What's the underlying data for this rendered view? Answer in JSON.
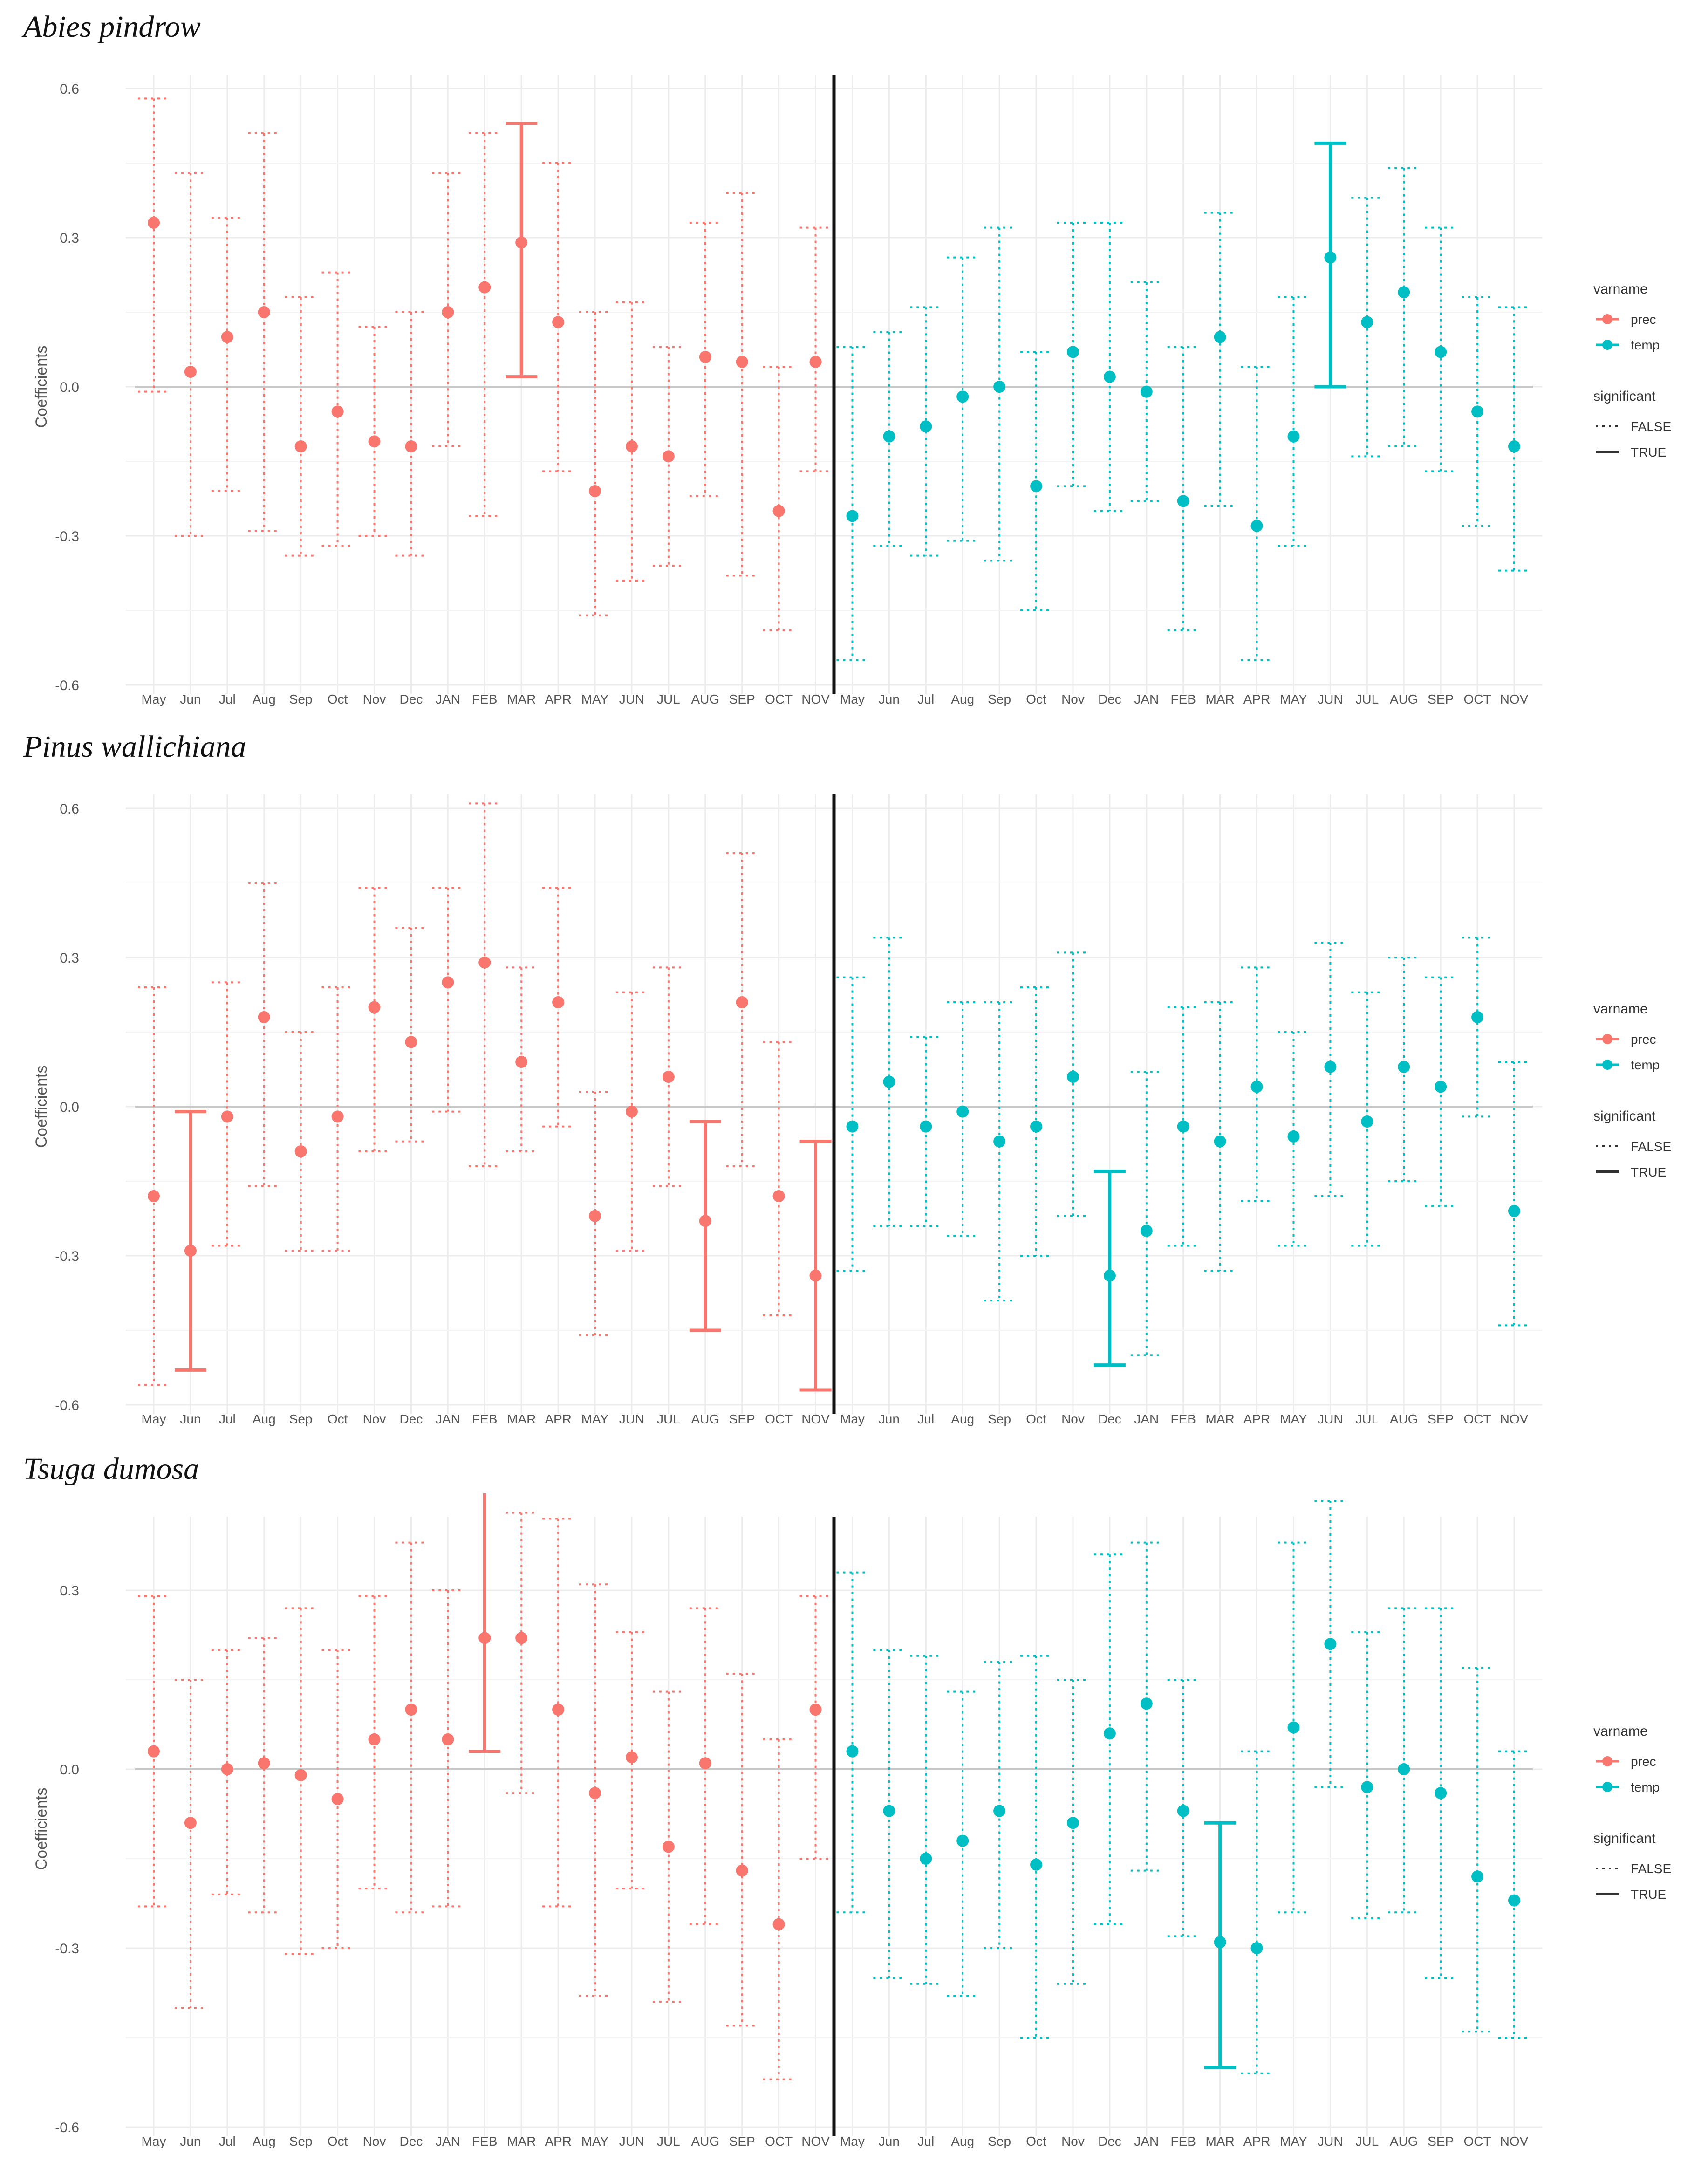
{
  "chart_data": [
    {
      "type": "errorbar",
      "title": "Abies pindrow",
      "ylabel": "Coefficients",
      "ylim": [
        -0.6,
        0.6
      ],
      "yticks": [
        0.6,
        0.3,
        0.0,
        -0.3,
        -0.6
      ],
      "ytick_labels": [
        "0.6",
        "0.3",
        "0.0",
        "-0.3",
        "-0.6"
      ],
      "categories": [
        "May",
        "Jun",
        "Jul",
        "Aug",
        "Sep",
        "Oct",
        "Nov",
        "Dec",
        "JAN",
        "FEB",
        "MAR",
        "APR",
        "MAY",
        "JUN",
        "JUL",
        "AUG",
        "SEP",
        "OCT",
        "NOV"
      ],
      "divider": "between series",
      "series": [
        {
          "name": "prec",
          "color": "#F8766D",
          "values": [
            0.33,
            0.03,
            0.1,
            0.15,
            -0.12,
            -0.05,
            -0.11,
            -0.12,
            0.15,
            0.2,
            0.29,
            0.13,
            -0.21,
            -0.12,
            -0.14,
            0.06,
            0.05,
            -0.25,
            0.05
          ],
          "lower": [
            -0.01,
            -0.3,
            -0.21,
            -0.29,
            -0.34,
            -0.32,
            -0.3,
            -0.34,
            -0.12,
            -0.26,
            0.02,
            -0.17,
            -0.46,
            -0.39,
            -0.36,
            -0.22,
            -0.38,
            -0.49,
            -0.17
          ],
          "upper": [
            0.58,
            0.43,
            0.34,
            0.51,
            0.18,
            0.23,
            0.12,
            0.15,
            0.43,
            0.51,
            0.53,
            0.45,
            0.15,
            0.17,
            0.08,
            0.33,
            0.39,
            0.04,
            0.32
          ],
          "significant": [
            false,
            false,
            false,
            false,
            false,
            false,
            false,
            false,
            false,
            false,
            true,
            false,
            false,
            false,
            false,
            false,
            false,
            false,
            false
          ]
        },
        {
          "name": "temp",
          "color": "#00BFC4",
          "values": [
            -0.26,
            -0.1,
            -0.08,
            -0.02,
            0.0,
            -0.2,
            0.07,
            0.02,
            -0.01,
            -0.23,
            0.1,
            -0.28,
            -0.1,
            0.26,
            0.13,
            0.19,
            0.07,
            -0.05,
            -0.12
          ],
          "lower": [
            -0.55,
            -0.32,
            -0.34,
            -0.31,
            -0.35,
            -0.45,
            -0.2,
            -0.25,
            -0.23,
            -0.49,
            -0.24,
            -0.55,
            -0.32,
            0.0,
            -0.14,
            -0.12,
            -0.17,
            -0.28,
            -0.37
          ],
          "upper": [
            0.08,
            0.11,
            0.16,
            0.26,
            0.32,
            0.07,
            0.33,
            0.33,
            0.21,
            0.08,
            0.35,
            0.04,
            0.18,
            0.49,
            0.38,
            0.44,
            0.32,
            0.18,
            0.16
          ],
          "significant": [
            false,
            false,
            false,
            false,
            false,
            false,
            false,
            false,
            false,
            false,
            false,
            false,
            false,
            true,
            false,
            false,
            false,
            false,
            false
          ]
        }
      ],
      "legend": {
        "position": "right",
        "title_color": "varname",
        "entries_color": [
          "prec",
          "temp"
        ],
        "title_linetype": "significant",
        "entries_linetype": [
          "FALSE",
          "TRUE"
        ]
      },
      "grid": true
    },
    {
      "type": "errorbar",
      "title": "Pinus wallichiana",
      "ylabel": "Coefficients",
      "ylim": [
        -0.6,
        0.6
      ],
      "yticks": [
        0.6,
        0.3,
        0.0,
        -0.3,
        -0.6
      ],
      "ytick_labels": [
        "0.6",
        "0.3",
        "0.0",
        "-0.3",
        "-0.6"
      ],
      "categories": [
        "May",
        "Jun",
        "Jul",
        "Aug",
        "Sep",
        "Oct",
        "Nov",
        "Dec",
        "JAN",
        "FEB",
        "MAR",
        "APR",
        "MAY",
        "JUN",
        "JUL",
        "AUG",
        "SEP",
        "OCT",
        "NOV"
      ],
      "divider": "between series",
      "series": [
        {
          "name": "prec",
          "color": "#F8766D",
          "values": [
            -0.18,
            -0.29,
            -0.02,
            0.18,
            -0.09,
            -0.02,
            0.2,
            0.13,
            0.25,
            0.29,
            0.09,
            0.21,
            -0.22,
            -0.01,
            0.06,
            -0.23,
            0.21,
            -0.18,
            -0.34
          ],
          "lower": [
            -0.56,
            -0.53,
            -0.28,
            -0.16,
            -0.29,
            -0.29,
            -0.09,
            -0.07,
            -0.01,
            -0.12,
            -0.09,
            -0.04,
            -0.46,
            -0.29,
            -0.16,
            -0.45,
            -0.12,
            -0.42,
            -0.57
          ],
          "upper": [
            0.24,
            -0.01,
            0.25,
            0.45,
            0.15,
            0.24,
            0.44,
            0.36,
            0.44,
            0.61,
            0.28,
            0.44,
            0.03,
            0.23,
            0.28,
            -0.03,
            0.51,
            0.13,
            -0.07
          ],
          "significant": [
            false,
            true,
            false,
            false,
            false,
            false,
            false,
            false,
            false,
            false,
            false,
            false,
            false,
            false,
            false,
            true,
            false,
            false,
            true
          ]
        },
        {
          "name": "temp",
          "color": "#00BFC4",
          "values": [
            -0.04,
            0.05,
            -0.04,
            -0.01,
            -0.07,
            -0.04,
            0.06,
            -0.34,
            -0.25,
            -0.04,
            -0.07,
            0.04,
            -0.06,
            0.08,
            -0.03,
            0.08,
            0.04,
            0.18,
            -0.21
          ],
          "lower": [
            -0.33,
            -0.24,
            -0.24,
            -0.26,
            -0.39,
            -0.3,
            -0.22,
            -0.52,
            -0.5,
            -0.28,
            -0.33,
            -0.19,
            -0.28,
            -0.18,
            -0.28,
            -0.15,
            -0.2,
            -0.02,
            -0.44
          ],
          "upper": [
            0.26,
            0.34,
            0.14,
            0.21,
            0.21,
            0.24,
            0.31,
            -0.13,
            0.07,
            0.2,
            0.21,
            0.28,
            0.15,
            0.33,
            0.23,
            0.3,
            0.26,
            0.34,
            0.09
          ],
          "significant": [
            false,
            false,
            false,
            false,
            false,
            false,
            false,
            true,
            false,
            false,
            false,
            false,
            false,
            false,
            false,
            false,
            false,
            false,
            false
          ]
        }
      ],
      "legend": {
        "position": "right",
        "title_color": "varname",
        "entries_color": [
          "prec",
          "temp"
        ],
        "title_linetype": "significant",
        "entries_linetype": [
          "FALSE",
          "TRUE"
        ]
      },
      "grid": true
    },
    {
      "type": "errorbar",
      "title": "Tsuga dumosa",
      "ylabel": "Coefficients",
      "ylim": [
        -0.6,
        0.4
      ],
      "yticks": [
        0.3,
        0.0,
        -0.3,
        -0.6
      ],
      "ytick_labels": [
        "0.3",
        "0.0",
        "-0.3",
        "-0.6"
      ],
      "categories": [
        "May",
        "Jun",
        "Jul",
        "Aug",
        "Sep",
        "Oct",
        "Nov",
        "Dec",
        "JAN",
        "FEB",
        "MAR",
        "APR",
        "MAY",
        "JUN",
        "JUL",
        "AUG",
        "SEP",
        "OCT",
        "NOV"
      ],
      "divider": "between series",
      "series": [
        {
          "name": "prec",
          "color": "#F8766D",
          "values": [
            0.03,
            -0.09,
            0.0,
            0.01,
            -0.01,
            -0.05,
            0.05,
            0.1,
            0.05,
            0.22,
            0.22,
            0.1,
            -0.04,
            0.02,
            -0.13,
            0.01,
            -0.17,
            -0.26,
            0.1
          ],
          "lower": [
            -0.23,
            -0.4,
            -0.21,
            -0.24,
            -0.31,
            -0.3,
            -0.2,
            -0.24,
            -0.23,
            0.03,
            -0.04,
            -0.23,
            -0.38,
            -0.2,
            -0.39,
            -0.26,
            -0.43,
            -0.52,
            -0.15
          ],
          "upper": [
            0.29,
            0.15,
            0.2,
            0.22,
            0.27,
            0.2,
            0.29,
            0.38,
            0.3,
            0.47,
            0.43,
            0.42,
            0.31,
            0.23,
            0.13,
            0.27,
            0.16,
            0.05,
            0.29
          ],
          "significant": [
            false,
            false,
            false,
            false,
            false,
            false,
            false,
            false,
            false,
            true,
            false,
            false,
            false,
            false,
            false,
            false,
            false,
            false,
            false
          ]
        },
        {
          "name": "temp",
          "color": "#00BFC4",
          "values": [
            0.03,
            -0.07,
            -0.15,
            -0.12,
            -0.07,
            -0.16,
            -0.09,
            0.06,
            0.11,
            -0.07,
            -0.29,
            -0.3,
            0.07,
            0.21,
            -0.03,
            0.0,
            -0.04,
            -0.18,
            -0.22
          ],
          "lower": [
            -0.24,
            -0.35,
            -0.36,
            -0.38,
            -0.3,
            -0.45,
            -0.36,
            -0.26,
            -0.17,
            -0.28,
            -0.5,
            -0.51,
            -0.24,
            -0.03,
            -0.25,
            -0.24,
            -0.35,
            -0.44,
            -0.45
          ],
          "upper": [
            0.33,
            0.2,
            0.19,
            0.13,
            0.18,
            0.19,
            0.15,
            0.36,
            0.38,
            0.15,
            -0.09,
            0.03,
            0.38,
            0.45,
            0.23,
            0.27,
            0.27,
            0.17,
            0.03
          ],
          "significant": [
            false,
            false,
            false,
            false,
            false,
            false,
            false,
            false,
            false,
            false,
            true,
            false,
            false,
            false,
            false,
            false,
            false,
            false,
            false
          ]
        }
      ],
      "legend": {
        "position": "right",
        "title_color": "varname",
        "entries_color": [
          "prec",
          "temp"
        ],
        "title_linetype": "significant",
        "entries_linetype": [
          "FALSE",
          "TRUE"
        ]
      },
      "grid": true
    }
  ]
}
